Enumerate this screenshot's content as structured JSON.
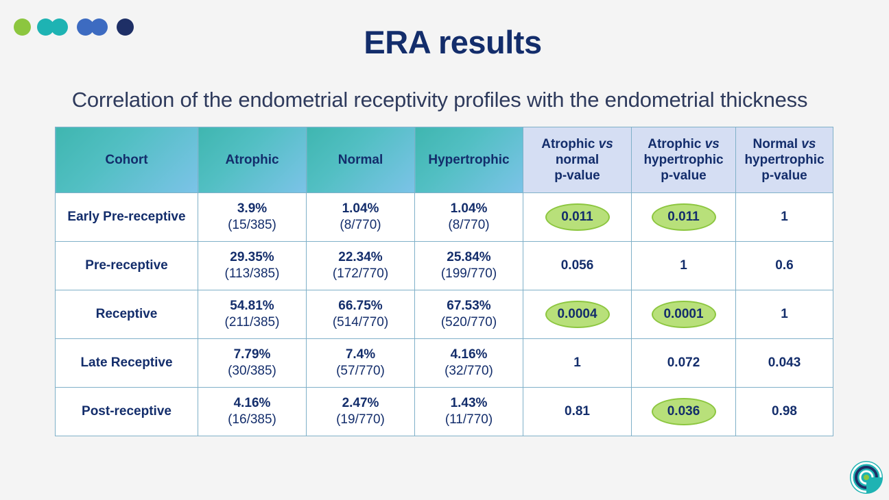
{
  "slide": {
    "title": "ERA results",
    "subtitle": "Correlation of the endometrial receptivity profiles with the endometrial thickness",
    "dot_colors": [
      "#8cc63f",
      "#1eb3b3",
      "#3d6bc1",
      "#1e2f66"
    ],
    "logo_icon": "spiral-logo-icon"
  },
  "table": {
    "header": {
      "cohort": "Cohort",
      "atrophic": "Atrophic",
      "normal": "Normal",
      "hypertrophic": "Hypertrophic",
      "p1": [
        "Atrophic ",
        "vs",
        "normal",
        "p-value"
      ],
      "p2": [
        "Atrophic ",
        "vs",
        "hypertrophic",
        "p-value"
      ],
      "p3": [
        "Normal ",
        "vs",
        "hypertrophic",
        "p-value"
      ]
    },
    "highlight_color": "#b8e07a",
    "rows": [
      {
        "cohort": "Early Pre-receptive",
        "atrophic": {
          "pct": "3.9%",
          "frac": "(15/385)"
        },
        "normal": {
          "pct": "1.04%",
          "frac": "(8/770)"
        },
        "hypertrophic": {
          "pct": "1.04%",
          "frac": "(8/770)"
        },
        "p1": "0.011",
        "p2": "0.011",
        "p3": "1",
        "p1_hl": true,
        "p2_hl": true,
        "p3_hl": false
      },
      {
        "cohort": "Pre-receptive",
        "atrophic": {
          "pct": "29.35%",
          "frac": "(113/385)"
        },
        "normal": {
          "pct": "22.34%",
          "frac": "(172/770)"
        },
        "hypertrophic": {
          "pct": "25.84%",
          "frac": "(199/770)"
        },
        "p1": "0.056",
        "p2": "1",
        "p3": "0.6",
        "p1_hl": false,
        "p2_hl": false,
        "p3_hl": false
      },
      {
        "cohort": "Receptive",
        "atrophic": {
          "pct": "54.81%",
          "frac": "(211/385)"
        },
        "normal": {
          "pct": "66.75%",
          "frac": "(514/770)"
        },
        "hypertrophic": {
          "pct": "67.53%",
          "frac": "(520/770)"
        },
        "p1": "0.0004",
        "p2": "0.0001",
        "p3": "1",
        "p1_hl": true,
        "p2_hl": true,
        "p3_hl": false
      },
      {
        "cohort": "Late Receptive",
        "atrophic": {
          "pct": "7.79%",
          "frac": "(30/385)"
        },
        "normal": {
          "pct": "7.4%",
          "frac": "(57/770)"
        },
        "hypertrophic": {
          "pct": "4.16%",
          "frac": "(32/770)"
        },
        "p1": "1",
        "p2": "0.072",
        "p3": "0.043",
        "p1_hl": false,
        "p2_hl": false,
        "p3_hl": false
      },
      {
        "cohort": "Post-receptive",
        "atrophic": {
          "pct": "4.16%",
          "frac": "(16/385)"
        },
        "normal": {
          "pct": "2.47%",
          "frac": "(19/770)"
        },
        "hypertrophic": {
          "pct": "1.43%",
          "frac": "(11/770)"
        },
        "p1": "0.81",
        "p2": "0.036",
        "p3": "0.98",
        "p1_hl": false,
        "p2_hl": true,
        "p3_hl": false
      }
    ]
  }
}
